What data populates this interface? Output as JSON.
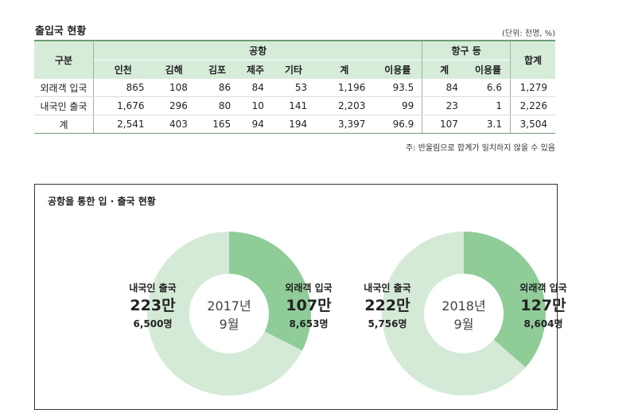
{
  "header": {
    "title": "출입국 현황",
    "unit": "(단위: 천명, %)"
  },
  "table": {
    "col_group": "구분",
    "airport_group": "공항",
    "port_group": "항구 등",
    "total_header": "합계",
    "airport_cols": [
      "인천",
      "김해",
      "김포",
      "제주",
      "기타",
      "계",
      "이용률"
    ],
    "port_cols": [
      "계",
      "이용률"
    ],
    "rows": [
      {
        "label": "외래객 입국",
        "cells": [
          "865",
          "108",
          "86",
          "84",
          "53",
          "1,196",
          "93.5",
          "84",
          "6.6",
          "1,279"
        ]
      },
      {
        "label": "내국인 출국",
        "cells": [
          "1,676",
          "296",
          "80",
          "10",
          "141",
          "2,203",
          "99",
          "23",
          "1",
          "2,226"
        ]
      },
      {
        "label": "계",
        "cells": [
          "2,541",
          "403",
          "165",
          "94",
          "194",
          "3,397",
          "96.9",
          "107",
          "3.1",
          "3,504"
        ]
      }
    ],
    "note": "주: 반올림으로 합계가 일치하지 않을 수 있음"
  },
  "chart_data": {
    "type": "pie",
    "title": "공항을 통한 입 · 출국 현황",
    "colors": {
      "inbound": "#8fcc98",
      "outbound": "#d4ead7"
    },
    "charts": [
      {
        "center_label": [
          "2017년",
          "9월"
        ],
        "slices": [
          {
            "name": "외래객 입국",
            "value": 107,
            "value_label": "107만",
            "people": "8,653명"
          },
          {
            "name": "내국인 출국",
            "value": 223,
            "value_label": "223만",
            "people": "6,500명"
          }
        ]
      },
      {
        "center_label": [
          "2018년",
          "9월"
        ],
        "slices": [
          {
            "name": "외래객 입국",
            "value": 127,
            "value_label": "127만",
            "people": "8,604명"
          },
          {
            "name": "내국인 출국",
            "value": 222,
            "value_label": "222만",
            "people": "5,756명"
          }
        ]
      }
    ]
  }
}
